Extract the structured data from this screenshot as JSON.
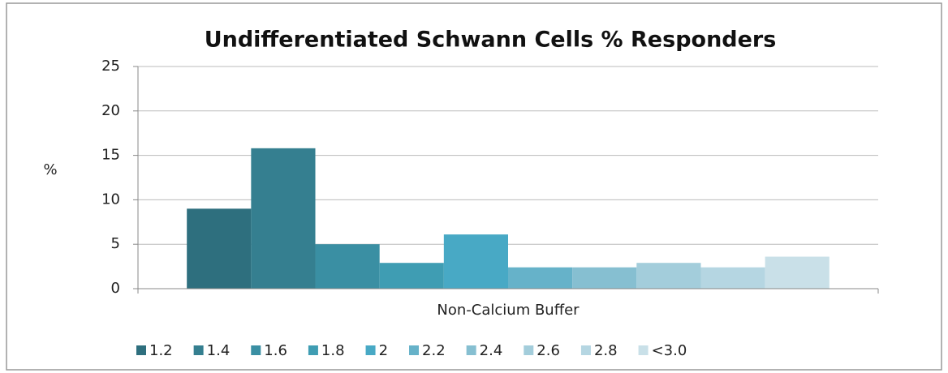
{
  "chart_data": {
    "type": "bar",
    "title": "Undifferentiated Schwann Cells % Responders",
    "ylabel": "%",
    "categories": [
      "Non-Calcium Buffer"
    ],
    "series": [
      {
        "name": "1.2",
        "color": "#2e6f7e",
        "values": [
          9.0
        ]
      },
      {
        "name": "1.4",
        "color": "#357f90",
        "values": [
          15.8
        ]
      },
      {
        "name": "1.6",
        "color": "#3a8fa3",
        "values": [
          5.0
        ]
      },
      {
        "name": "1.8",
        "color": "#3f9db3",
        "values": [
          2.9
        ]
      },
      {
        "name": "2",
        "color": "#48a9c5",
        "values": [
          6.1
        ]
      },
      {
        "name": "2.2",
        "color": "#66b2c9",
        "values": [
          2.4
        ]
      },
      {
        "name": "2.4",
        "color": "#86bfd1",
        "values": [
          2.4
        ]
      },
      {
        "name": "2.6",
        "color": "#a3cddb",
        "values": [
          2.9
        ]
      },
      {
        "name": "2.8",
        "color": "#b5d6e2",
        "values": [
          2.4
        ]
      },
      {
        "name": "<3.0",
        "color": "#c9e0e8",
        "values": [
          3.6
        ]
      }
    ],
    "ylim": [
      0,
      25
    ],
    "yticks": [
      0,
      5,
      10,
      15,
      20,
      25
    ],
    "grid": true,
    "legend": "bottom"
  }
}
